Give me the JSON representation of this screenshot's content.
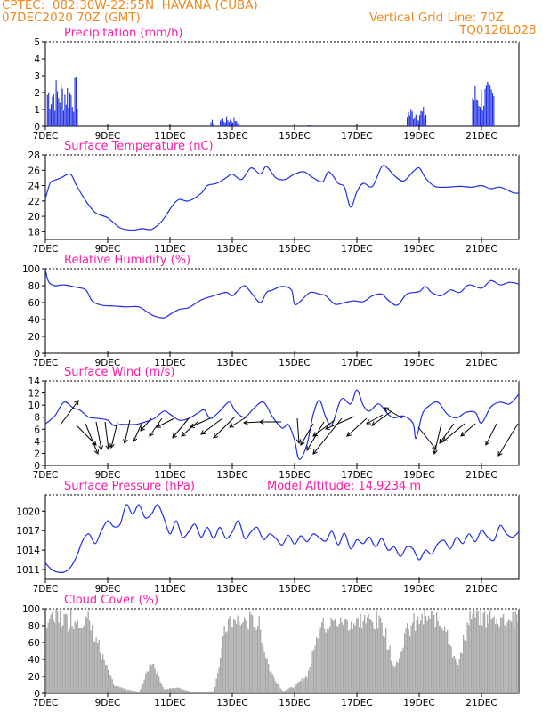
{
  "header": {
    "line1": "CPTEC:  082:30W-22:55N  HAVANA (CUBA)",
    "line2": "07DEC2020 70Z (GMT)",
    "right1": "Vertical Grid Line: 70Z",
    "right2": "TQ0126L028"
  },
  "colors": {
    "header": "#ef8a1f",
    "title": "#ff1aa8",
    "series": "#1f2fe6",
    "cloud": "#a6a6a6"
  },
  "x_axis": {
    "tick_labels": [
      "7DEC",
      "9DEC",
      "11DEC",
      "13DEC",
      "15DEC",
      "17DEC",
      "19DEC",
      "21DEC"
    ],
    "tick_days": [
      7,
      9,
      11,
      13,
      15,
      17,
      19,
      21
    ],
    "range_days": [
      7,
      22.2
    ]
  },
  "chart_data": [
    {
      "type": "bar",
      "title": "Precipitation (mm/h)",
      "ylim": [
        0,
        5
      ],
      "yticks": [
        0,
        1,
        2,
        3,
        4,
        5
      ],
      "events": [
        {
          "start": 7.05,
          "end": 8.05,
          "peak": 3.0
        },
        {
          "start": 12.3,
          "end": 12.4,
          "peak": 0.4
        },
        {
          "start": 12.6,
          "end": 13.2,
          "peak": 0.6
        },
        {
          "start": 15.4,
          "end": 15.5,
          "peak": 0.1
        },
        {
          "start": 18.6,
          "end": 19.2,
          "peak": 1.2
        },
        {
          "start": 20.7,
          "end": 21.4,
          "peak": 2.7
        }
      ]
    },
    {
      "type": "line",
      "title": "Surface Temperature (nC)",
      "ylim": [
        17,
        28
      ],
      "yticks": [
        18,
        20,
        22,
        24,
        26,
        28
      ],
      "x": [
        7.0,
        7.15,
        7.3,
        7.5,
        7.8,
        8.0,
        8.3,
        8.6,
        9.0,
        9.4,
        9.8,
        10.1,
        10.4,
        10.7,
        10.9,
        11.1,
        11.3,
        11.6,
        12.0,
        12.2,
        12.5,
        12.8,
        13.0,
        13.3,
        13.6,
        13.9,
        14.1,
        14.4,
        14.7,
        15.0,
        15.3,
        15.6,
        15.9,
        16.1,
        16.4,
        16.6,
        16.8,
        17.0,
        17.2,
        17.5,
        17.8,
        18.0,
        18.2,
        18.5,
        18.8,
        19.0,
        19.2,
        19.5,
        19.9,
        20.3,
        20.7,
        21.0,
        21.3,
        21.6,
        22.0,
        22.2
      ],
      "y": [
        22.3,
        24.3,
        24.7,
        25.0,
        25.5,
        24.0,
        22.0,
        20.5,
        19.8,
        18.5,
        18.2,
        18.4,
        18.3,
        19.2,
        20.3,
        21.5,
        22.2,
        22.0,
        23.0,
        24.0,
        24.3,
        25.0,
        25.5,
        24.8,
        26.3,
        25.5,
        26.5,
        25.0,
        24.8,
        25.5,
        25.8,
        25.0,
        24.5,
        25.8,
        24.3,
        23.8,
        21.2,
        23.2,
        24.3,
        23.9,
        26.5,
        26.2,
        25.3,
        24.6,
        25.8,
        26.3,
        25.0,
        23.9,
        23.8,
        23.9,
        23.8,
        24.0,
        23.6,
        23.8,
        23.1,
        23.0
      ]
    },
    {
      "type": "line",
      "title": "Relative Humidity (%)",
      "ylim": [
        0,
        100
      ],
      "yticks": [
        0,
        20,
        40,
        60,
        80,
        100
      ],
      "x": [
        7.0,
        7.1,
        7.3,
        7.6,
        8.0,
        8.3,
        8.5,
        8.8,
        9.2,
        9.6,
        10.0,
        10.3,
        10.5,
        10.8,
        11.0,
        11.3,
        11.6,
        12.0,
        12.4,
        12.8,
        13.0,
        13.2,
        13.4,
        13.6,
        13.9,
        14.1,
        14.3,
        14.6,
        14.9,
        15.0,
        15.2,
        15.5,
        15.8,
        16.0,
        16.3,
        16.6,
        16.9,
        17.2,
        17.5,
        17.8,
        18.0,
        18.3,
        18.6,
        19.0,
        19.2,
        19.4,
        19.7,
        20.0,
        20.3,
        20.6,
        21.0,
        21.3,
        21.6,
        21.9,
        22.2
      ],
      "y": [
        99,
        85,
        80,
        81,
        78,
        75,
        62,
        57,
        56,
        55,
        55,
        48,
        44,
        42,
        46,
        52,
        54,
        63,
        68,
        72,
        68,
        75,
        80,
        72,
        60,
        72,
        75,
        79,
        75,
        58,
        62,
        72,
        70,
        68,
        58,
        60,
        62,
        61,
        68,
        70,
        63,
        57,
        70,
        73,
        79,
        72,
        68,
        75,
        72,
        81,
        77,
        86,
        81,
        84,
        82
      ]
    },
    {
      "type": "line",
      "title": "Surface Wind (m/s)",
      "ylim": [
        0,
        14
      ],
      "yticks": [
        0,
        2,
        4,
        6,
        8,
        10,
        12,
        14
      ],
      "x": [
        7.0,
        7.3,
        7.6,
        7.9,
        8.1,
        8.4,
        8.7,
        9.0,
        9.2,
        9.4,
        9.6,
        9.9,
        10.2,
        10.5,
        10.8,
        11.0,
        11.3,
        11.6,
        11.9,
        12.1,
        12.3,
        12.6,
        12.9,
        13.1,
        13.4,
        13.7,
        14.0,
        14.3,
        14.6,
        14.8,
        15.0,
        15.15,
        15.4,
        15.6,
        15.8,
        16.0,
        16.2,
        16.5,
        16.8,
        17.0,
        17.2,
        17.4,
        17.7,
        18.0,
        18.2,
        18.5,
        18.8,
        18.9,
        19.1,
        19.3,
        19.6,
        19.9,
        20.2,
        20.5,
        20.8,
        21.0,
        21.3,
        21.6,
        21.9,
        22.2
      ],
      "y": [
        6.9,
        8.2,
        10.5,
        9.5,
        9.2,
        8.0,
        7.8,
        7.5,
        6.6,
        6.8,
        6.8,
        6.8,
        7.2,
        7.8,
        9.0,
        8.5,
        7.5,
        7.8,
        8.7,
        9.2,
        7.8,
        9.0,
        10.5,
        9.0,
        8.0,
        9.5,
        10.5,
        8.0,
        6.2,
        6.8,
        4.2,
        1.0,
        3.5,
        8.5,
        10.8,
        8.0,
        6.8,
        11.0,
        10.2,
        12.5,
        10.0,
        9.0,
        10.2,
        8.5,
        7.9,
        8.2,
        7.0,
        4.5,
        8.5,
        9.8,
        10.5,
        8.5,
        7.9,
        8.8,
        8.8,
        7.0,
        9.7,
        10.5,
        10.2,
        11.8
      ]
    },
    {
      "type": "line",
      "title": "Surface Pressure (hPa)",
      "annotation": "Model Altitude: 14.9234 m",
      "ylim": [
        1009.5,
        1022.5
      ],
      "yticks": [
        1011,
        1014,
        1017,
        1020
      ],
      "x": [
        7.0,
        7.2,
        7.4,
        7.6,
        7.8,
        8.0,
        8.2,
        8.4,
        8.6,
        8.8,
        9.0,
        9.2,
        9.4,
        9.6,
        9.8,
        10.0,
        10.2,
        10.4,
        10.6,
        10.8,
        11.0,
        11.2,
        11.4,
        11.6,
        11.8,
        12.0,
        12.2,
        12.4,
        12.6,
        12.8,
        13.0,
        13.2,
        13.4,
        13.6,
        13.8,
        14.0,
        14.2,
        14.4,
        14.6,
        14.8,
        15.0,
        15.2,
        15.4,
        15.6,
        15.8,
        16.0,
        16.2,
        16.4,
        16.6,
        16.8,
        17.0,
        17.2,
        17.4,
        17.6,
        17.8,
        18.0,
        18.2,
        18.4,
        18.6,
        18.8,
        19.0,
        19.2,
        19.4,
        19.6,
        19.8,
        20.0,
        20.2,
        20.4,
        20.6,
        20.8,
        21.0,
        21.2,
        21.4,
        21.6,
        21.8,
        22.0,
        22.2
      ],
      "y": [
        1012.0,
        1011.0,
        1010.6,
        1010.6,
        1011.3,
        1013.0,
        1015.5,
        1016.5,
        1015.0,
        1017.0,
        1018.5,
        1017.6,
        1018.0,
        1021.0,
        1019.5,
        1021.0,
        1019.0,
        1019.5,
        1021.0,
        1019.0,
        1016.5,
        1018.5,
        1016.0,
        1016.8,
        1018.0,
        1016.0,
        1017.5,
        1015.8,
        1017.5,
        1015.8,
        1016.8,
        1018.5,
        1015.8,
        1016.8,
        1017.5,
        1015.6,
        1016.5,
        1015.8,
        1014.8,
        1016.3,
        1014.9,
        1016.2,
        1015.3,
        1016.5,
        1015.9,
        1015.4,
        1016.9,
        1014.8,
        1016.6,
        1014.2,
        1015.6,
        1015.0,
        1016.0,
        1014.5,
        1015.8,
        1014.0,
        1014.5,
        1013.0,
        1014.5,
        1014.2,
        1012.5,
        1014.0,
        1013.4,
        1015.0,
        1015.5,
        1014.2,
        1016.0,
        1015.0,
        1016.5,
        1015.3,
        1017.0,
        1016.0,
        1015.5,
        1017.8,
        1016.5,
        1016.0,
        1016.8
      ]
    },
    {
      "type": "bar",
      "title": "Cloud Cover (%)",
      "ylim": [
        0,
        100
      ],
      "yticks": [
        0,
        20,
        40,
        60,
        80,
        100
      ],
      "x": [
        7.0,
        7.5,
        8.0,
        8.4,
        8.8,
        9.2,
        9.6,
        10.0,
        10.4,
        10.8,
        11.2,
        11.6,
        12.0,
        12.4,
        12.8,
        13.0,
        13.4,
        13.8,
        14.2,
        14.6,
        15.0,
        15.4,
        15.8,
        16.2,
        16.6,
        17.0,
        17.4,
        17.8,
        18.2,
        18.6,
        19.0,
        19.4,
        19.8,
        20.2,
        20.6,
        21.0,
        21.4,
        21.8,
        22.2
      ],
      "y": [
        98,
        95,
        97,
        92,
        50,
        10,
        5,
        2,
        45,
        5,
        8,
        3,
        2,
        3,
        90,
        90,
        92,
        92,
        30,
        3,
        10,
        25,
        90,
        90,
        93,
        90,
        95,
        90,
        35,
        80,
        95,
        96,
        92,
        35,
        98,
        98,
        96,
        97,
        97
      ]
    }
  ]
}
